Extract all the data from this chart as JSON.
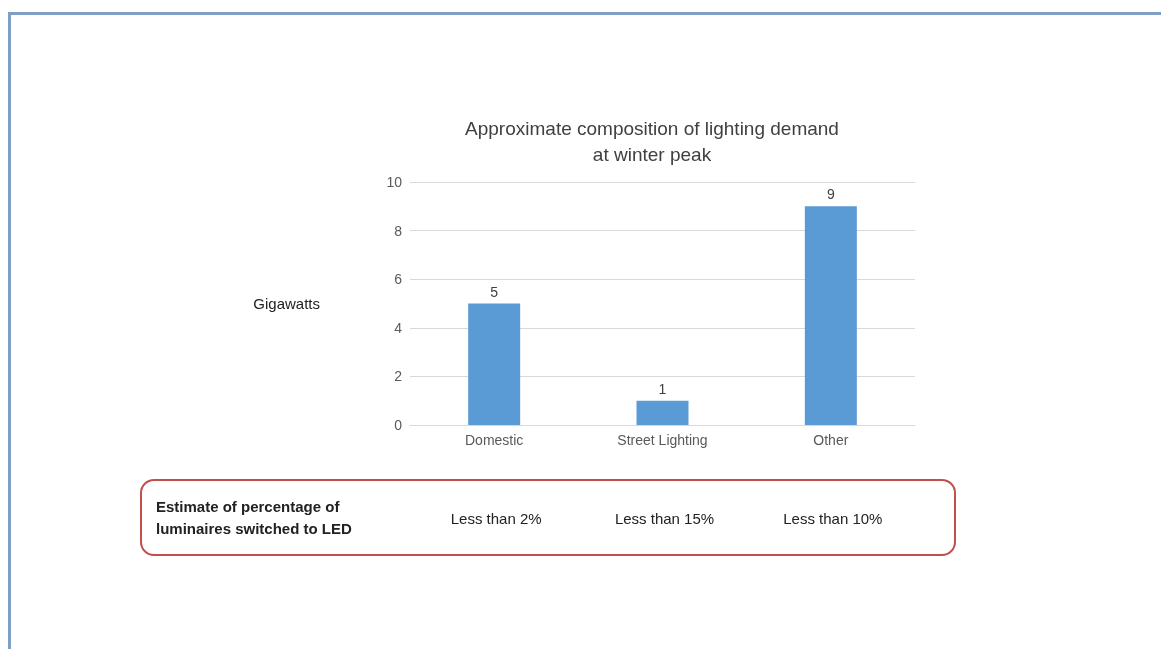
{
  "chart_data": {
    "type": "bar",
    "title": "Approximate composition of lighting demand\nat winter peak",
    "ylabel": "Gigawatts",
    "categories": [
      "Domestic",
      "Street Lighting",
      "Other"
    ],
    "values": [
      5,
      1,
      9
    ],
    "color": "#5b9bd5",
    "ylim": [
      0,
      10
    ],
    "yticks": [
      0,
      2,
      4,
      6,
      8,
      10
    ],
    "grid": "y",
    "data_labels": true,
    "annotations": [
      "Estimate of percentage of\nluminaires switched to LED",
      "Less than 2%",
      "Less than 15%",
      "Less than 10%"
    ]
  }
}
